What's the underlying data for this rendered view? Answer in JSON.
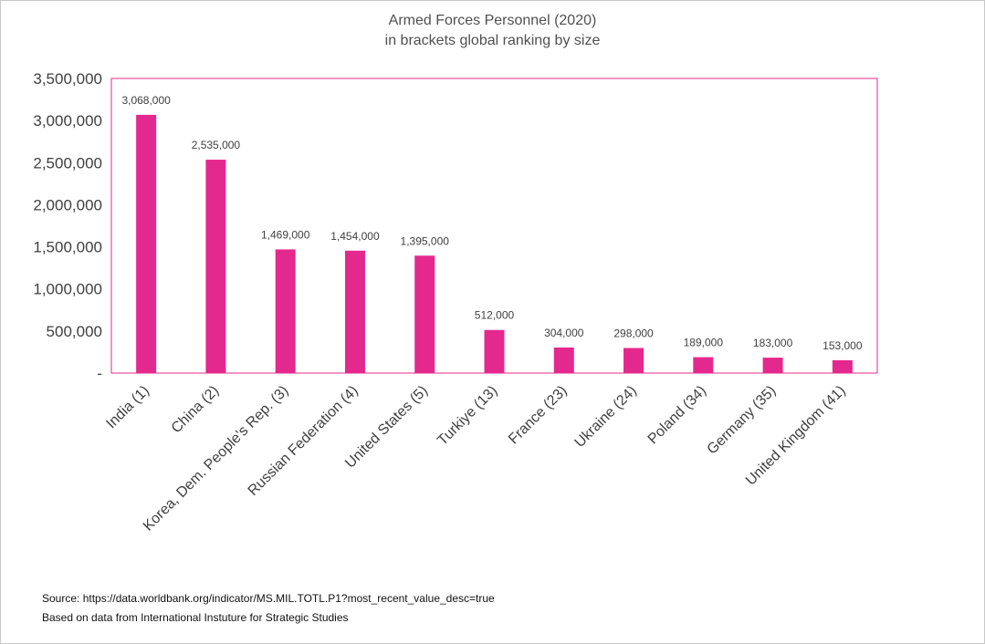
{
  "colors": {
    "bar": "#e3298d",
    "plot_border": "#e3298d",
    "text": "#404040"
  },
  "chart_data": {
    "type": "bar",
    "title": "Armed Forces Personnel (2020)",
    "subtitle": "in brackets global ranking by size",
    "xlabel": "",
    "ylabel": "",
    "categories": [
      "India (1)",
      "China (2)",
      "Korea, Dem. People's Rep. (3)",
      "Russian Federation (4)",
      "United States (5)",
      "Turkiye (13)",
      "France (23)",
      "Ukraine (24)",
      "Poland (34)",
      "Germany (35)",
      "United Kingdom (41)"
    ],
    "values": [
      3068000,
      2535000,
      1469000,
      1454000,
      1395000,
      512000,
      304000,
      298000,
      189000,
      183000,
      153000
    ],
    "data_labels": [
      "3,068,000",
      "2,535,000",
      "1,469,000",
      "1,454,000",
      "1,395,000",
      "512,000",
      "304,000",
      "298,000",
      "189,000",
      "183,000",
      "153,000"
    ],
    "ylim": [
      0,
      3500000
    ],
    "yticks": [
      0,
      500000,
      1000000,
      1500000,
      2000000,
      2500000,
      3000000,
      3500000
    ],
    "ytick_labels": [
      "-",
      "500,000",
      "1,000,000",
      "1,500,000",
      "2,000,000",
      "2,500,000",
      "3,000,000",
      "3,500,000"
    ],
    "grid": false,
    "legend": "none"
  },
  "footer": {
    "source": "Source:  https://data.worldbank.org/indicator/MS.MIL.TOTL.P1?most_recent_value_desc=true",
    "note": "Based on data from International Instuture for Strategic Studies"
  }
}
